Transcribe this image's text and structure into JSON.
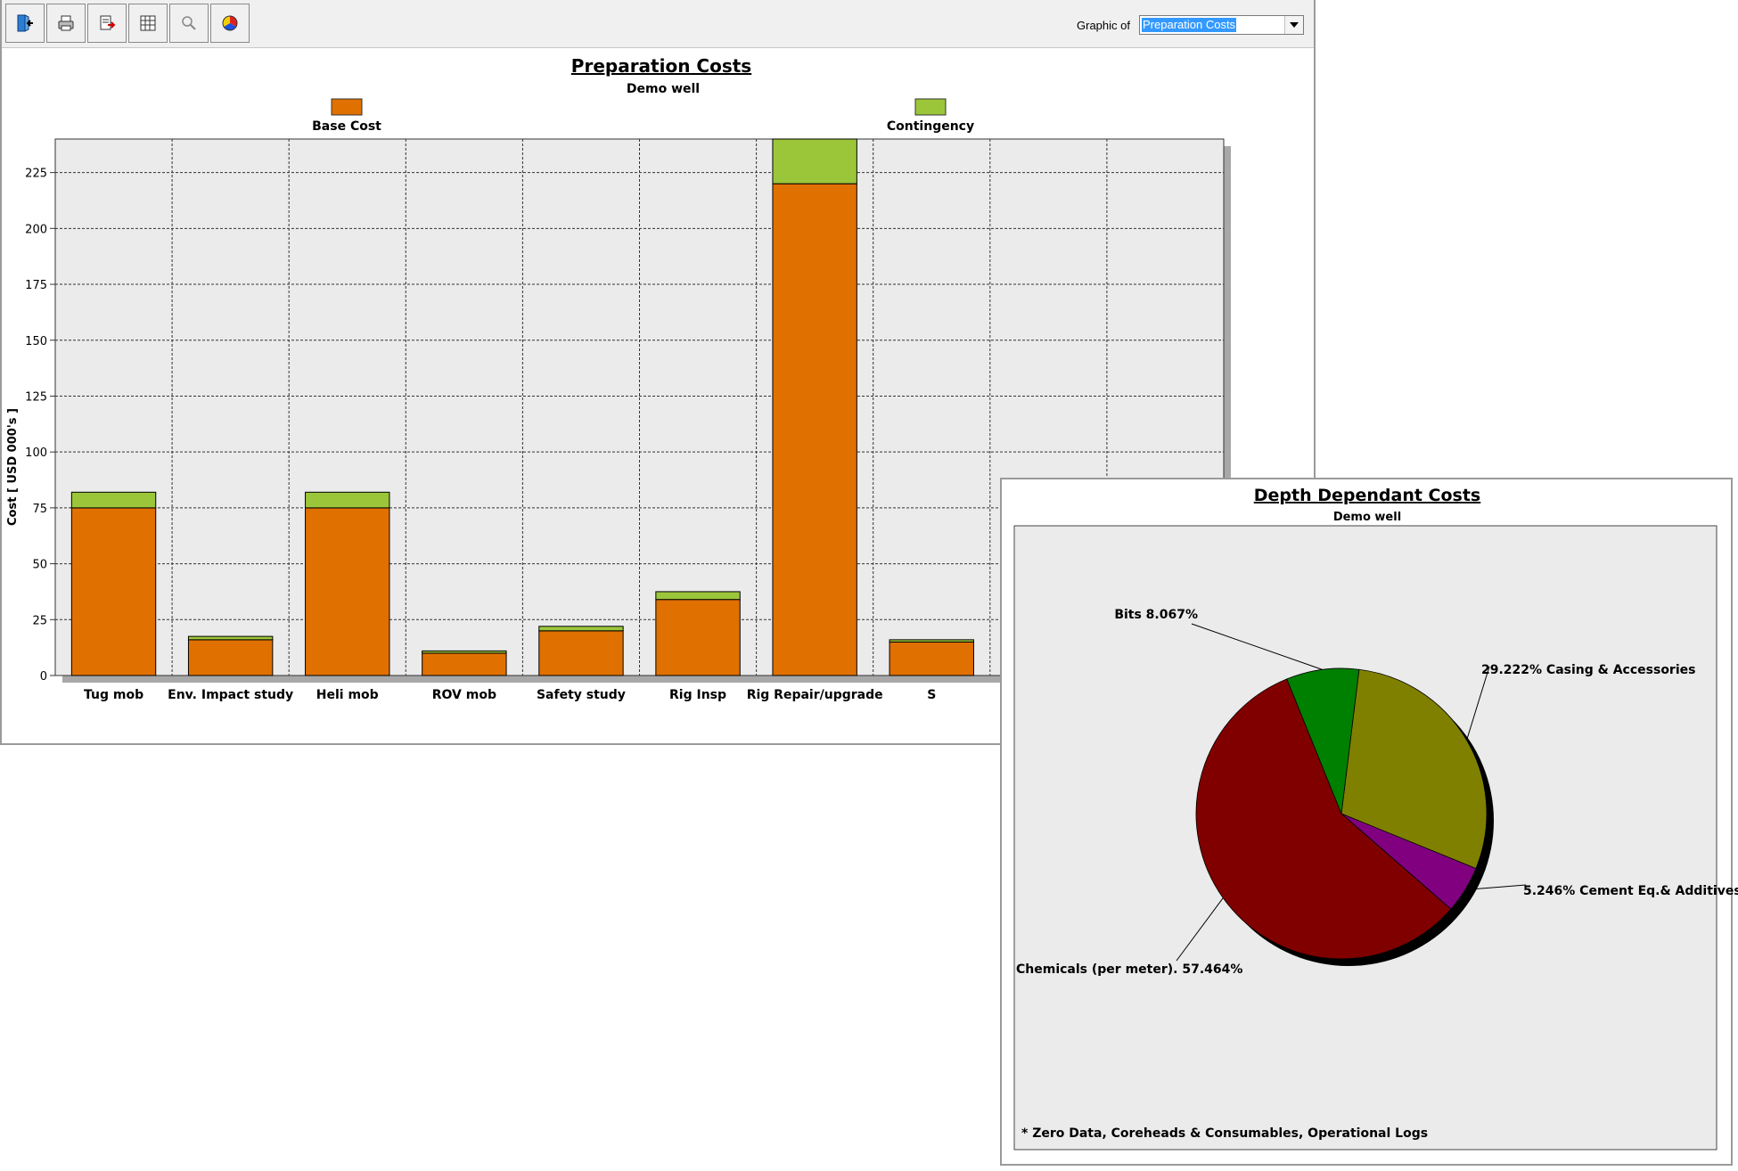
{
  "toolbar": {
    "buttons": [
      {
        "icon": "exit-icon",
        "name": "exit-button"
      },
      {
        "icon": "print-icon",
        "name": "print-button"
      },
      {
        "icon": "export-icon",
        "name": "export-button"
      },
      {
        "icon": "table-icon",
        "name": "table-button"
      },
      {
        "icon": "zoom-icon",
        "name": "zoom-button"
      },
      {
        "icon": "color-wheel-icon",
        "name": "colors-button"
      }
    ],
    "graphic_label": "Graphic of",
    "graphic_value": "Preparation Costs"
  },
  "chart_data": [
    {
      "type": "bar",
      "stacked": true,
      "title": "Preparation Costs",
      "subtitle": "Demo well",
      "xlabel": "",
      "ylabel": "Cost [ USD 000's ]",
      "ylim": [
        0,
        240
      ],
      "yticks": [
        0,
        25,
        50,
        75,
        100,
        125,
        150,
        175,
        200,
        225
      ],
      "grid": true,
      "legend_position": "top",
      "categories": [
        "Tug mob",
        "Env. Impact study",
        "Heli mob",
        "ROV mob",
        "Safety study",
        "Rig Insp",
        "Rig Repair/upgrade",
        "S",
        "",
        ""
      ],
      "series": [
        {
          "name": "Base Cost",
          "color": "#e07000",
          "values": [
            75,
            16,
            75,
            10,
            20,
            34,
            220,
            15,
            null,
            null
          ]
        },
        {
          "name": "Contingency",
          "color": "#9cc63a",
          "values": [
            7,
            1.5,
            7,
            1,
            2,
            3.5,
            25,
            1,
            null,
            null
          ]
        }
      ]
    },
    {
      "type": "pie",
      "title": "Depth Dependant Costs",
      "subtitle": "Demo well",
      "footnote": "* Zero Data, Coreheads & Consumables, Operational Logs",
      "slices": [
        {
          "label": "29.222% Casing & Accessories",
          "value": 29.222,
          "color": "#808000"
        },
        {
          "label": "5.246% Cement Eq.& Additives",
          "value": 5.246,
          "color": "#800080"
        },
        {
          "label": "Chemicals (per meter). 57.464%",
          "value": 57.464,
          "color": "#800000"
        },
        {
          "label": "Bits 8.067%",
          "value": 8.067,
          "color": "#008000"
        }
      ]
    }
  ]
}
